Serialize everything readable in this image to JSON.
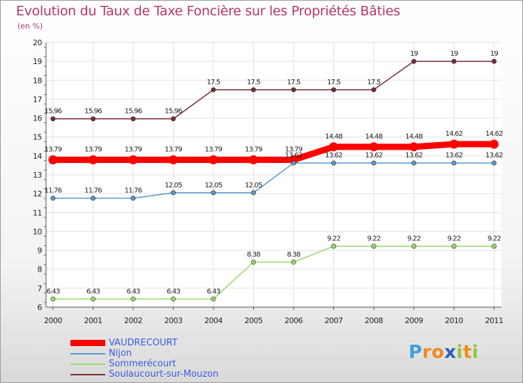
{
  "title": "Evolution du Taux de Taxe Foncière sur les Propriétés Bâties",
  "unit": "(en %)",
  "logo": {
    "letters": [
      "P",
      "r",
      "o",
      "x",
      "i",
      "t",
      "i"
    ],
    "colors": [
      "#3aa0d8",
      "#f08a1c",
      "#f08a1c",
      "#2f5fb8",
      "#8cc63f",
      "#f08a1c",
      "#8cc63f"
    ]
  },
  "chart_data": {
    "type": "line",
    "title": "Evolution du Taux de Taxe Foncière sur les Propriétés Bâties",
    "ylabel": "(en %)",
    "x": [
      "2000",
      "2001",
      "2002",
      "2003",
      "2004",
      "2005",
      "2006",
      "2007",
      "2008",
      "2009",
      "2010",
      "2011"
    ],
    "ylim": [
      6,
      20
    ],
    "yticks": [
      "6",
      "7",
      "8",
      "9",
      "10",
      "11",
      "12",
      "13",
      "14",
      "15",
      "16",
      "17",
      "18",
      "19",
      "20"
    ],
    "grid": true,
    "legend_position": "bottom-left",
    "series": [
      {
        "name": "VAUDRECOURT",
        "color": "#ff0000",
        "bold": true,
        "values": [
          13.79,
          13.79,
          13.79,
          13.79,
          13.79,
          13.79,
          13.79,
          14.48,
          14.48,
          14.48,
          14.62,
          14.62
        ],
        "labels": [
          "13.79",
          "13.79",
          "13.79",
          "13.79",
          "13.79",
          "13.79",
          "13.79",
          "14.48",
          "14.48",
          "14.48",
          "14.62",
          "14.62"
        ]
      },
      {
        "name": "Nijon",
        "color": "#5b97c9",
        "values": [
          11.76,
          11.76,
          11.76,
          12.05,
          12.05,
          12.05,
          13.62,
          13.62,
          13.62,
          13.62,
          13.62,
          13.62
        ],
        "labels": [
          "11.76",
          "11.76",
          "11.76",
          "12.05",
          "12.05",
          "12.05",
          "13.62",
          "13.62",
          "13.62",
          "13.62",
          "13.62",
          "13.62"
        ]
      },
      {
        "name": "Sommerécourt",
        "color": "#9cd66b",
        "values": [
          6.43,
          6.43,
          6.43,
          6.43,
          6.43,
          8.38,
          8.38,
          9.22,
          9.22,
          9.22,
          9.22,
          9.22
        ],
        "labels": [
          "6.43",
          "6.43",
          "6.43",
          "6.43",
          "6.43",
          "8.38",
          "8.38",
          "9.22",
          "9.22",
          "9.22",
          "9.22",
          "9.22"
        ]
      },
      {
        "name": "Soulaucourt-sur-Mouzon",
        "color": "#7a2a36",
        "values": [
          15.96,
          15.96,
          15.96,
          15.96,
          17.5,
          17.5,
          17.5,
          17.5,
          17.5,
          19,
          19,
          19
        ],
        "labels": [
          "15.96",
          "15.96",
          "15.96",
          "15.96",
          "17.5",
          "17.5",
          "17.5",
          "17.5",
          "17.5",
          "19",
          "19",
          "19"
        ]
      }
    ]
  }
}
